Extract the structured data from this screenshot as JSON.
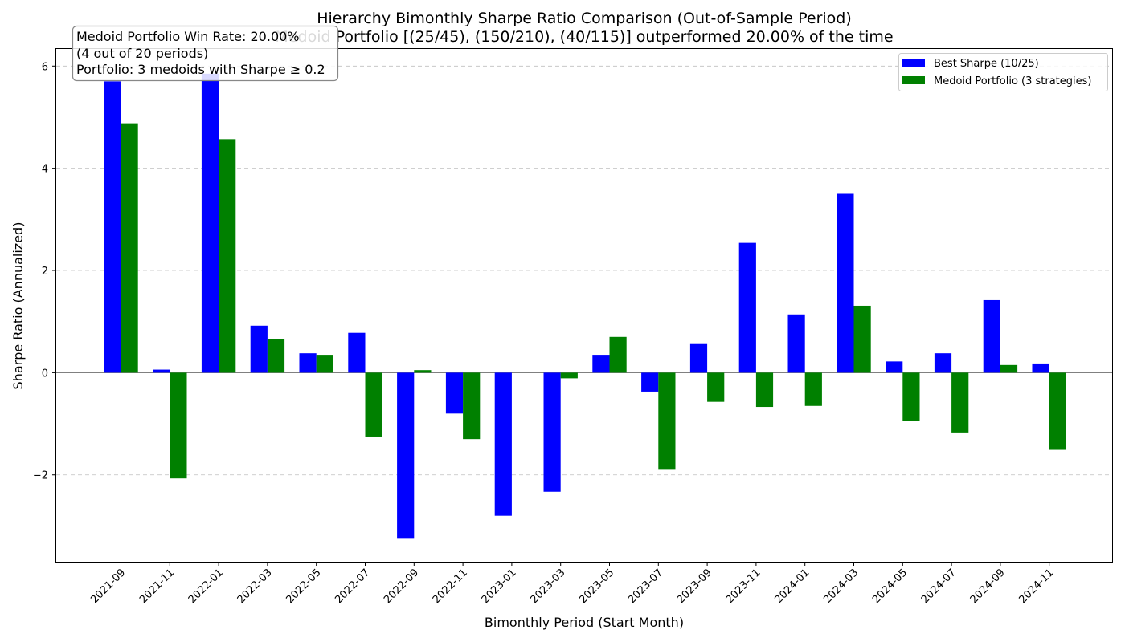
{
  "chart_data": {
    "type": "bar",
    "title": "Hierarchy Bimonthly Sharpe Ratio Comparison (Out-of-Sample Period)",
    "subtitle": "Medoid Portfolio [(25/45), (150/210), (40/115)] outperformed 20.00% of the time",
    "xlabel": "Bimonthly Period (Start Month)",
    "ylabel": "Sharpe Ratio (Annualized)",
    "ylim": [
      -3.7,
      6.35
    ],
    "yticks": [
      6,
      4,
      2,
      0,
      -2
    ],
    "ytick_labels": [
      "6",
      "4",
      "2",
      "0",
      "−2"
    ],
    "grid": "y-dashed",
    "legend_position": "top-right",
    "categories": [
      "2021-09",
      "2021-11",
      "2022-01",
      "2022-03",
      "2022-05",
      "2022-07",
      "2022-09",
      "2022-11",
      "2023-01",
      "2023-03",
      "2023-05",
      "2023-07",
      "2023-09",
      "2023-11",
      "2024-01",
      "2024-03",
      "2024-05",
      "2024-07",
      "2024-09",
      "2024-11"
    ],
    "series": [
      {
        "name": "Best Sharpe (10/25)",
        "color": "#0000ff",
        "values": [
          5.7,
          0.06,
          5.85,
          0.92,
          0.38,
          0.78,
          -3.25,
          -0.8,
          -2.8,
          -2.33,
          0.35,
          -0.37,
          0.56,
          2.54,
          1.14,
          3.5,
          0.22,
          0.38,
          1.42,
          0.18
        ]
      },
      {
        "name": "Medoid Portfolio (3 strategies)",
        "color": "#008000",
        "values": [
          4.88,
          -2.07,
          4.57,
          0.65,
          0.35,
          -1.25,
          0.05,
          -1.3,
          0.0,
          -0.11,
          0.7,
          -1.9,
          -0.57,
          -0.67,
          -0.65,
          1.31,
          -0.94,
          -1.17,
          0.15,
          -1.51
        ]
      }
    ],
    "annotation": {
      "lines": [
        "Medoid Portfolio Win Rate: 20.00%",
        "(4 out of 20 periods)",
        "Portfolio: 3 medoids with Sharpe ≥ 0.2"
      ]
    }
  }
}
